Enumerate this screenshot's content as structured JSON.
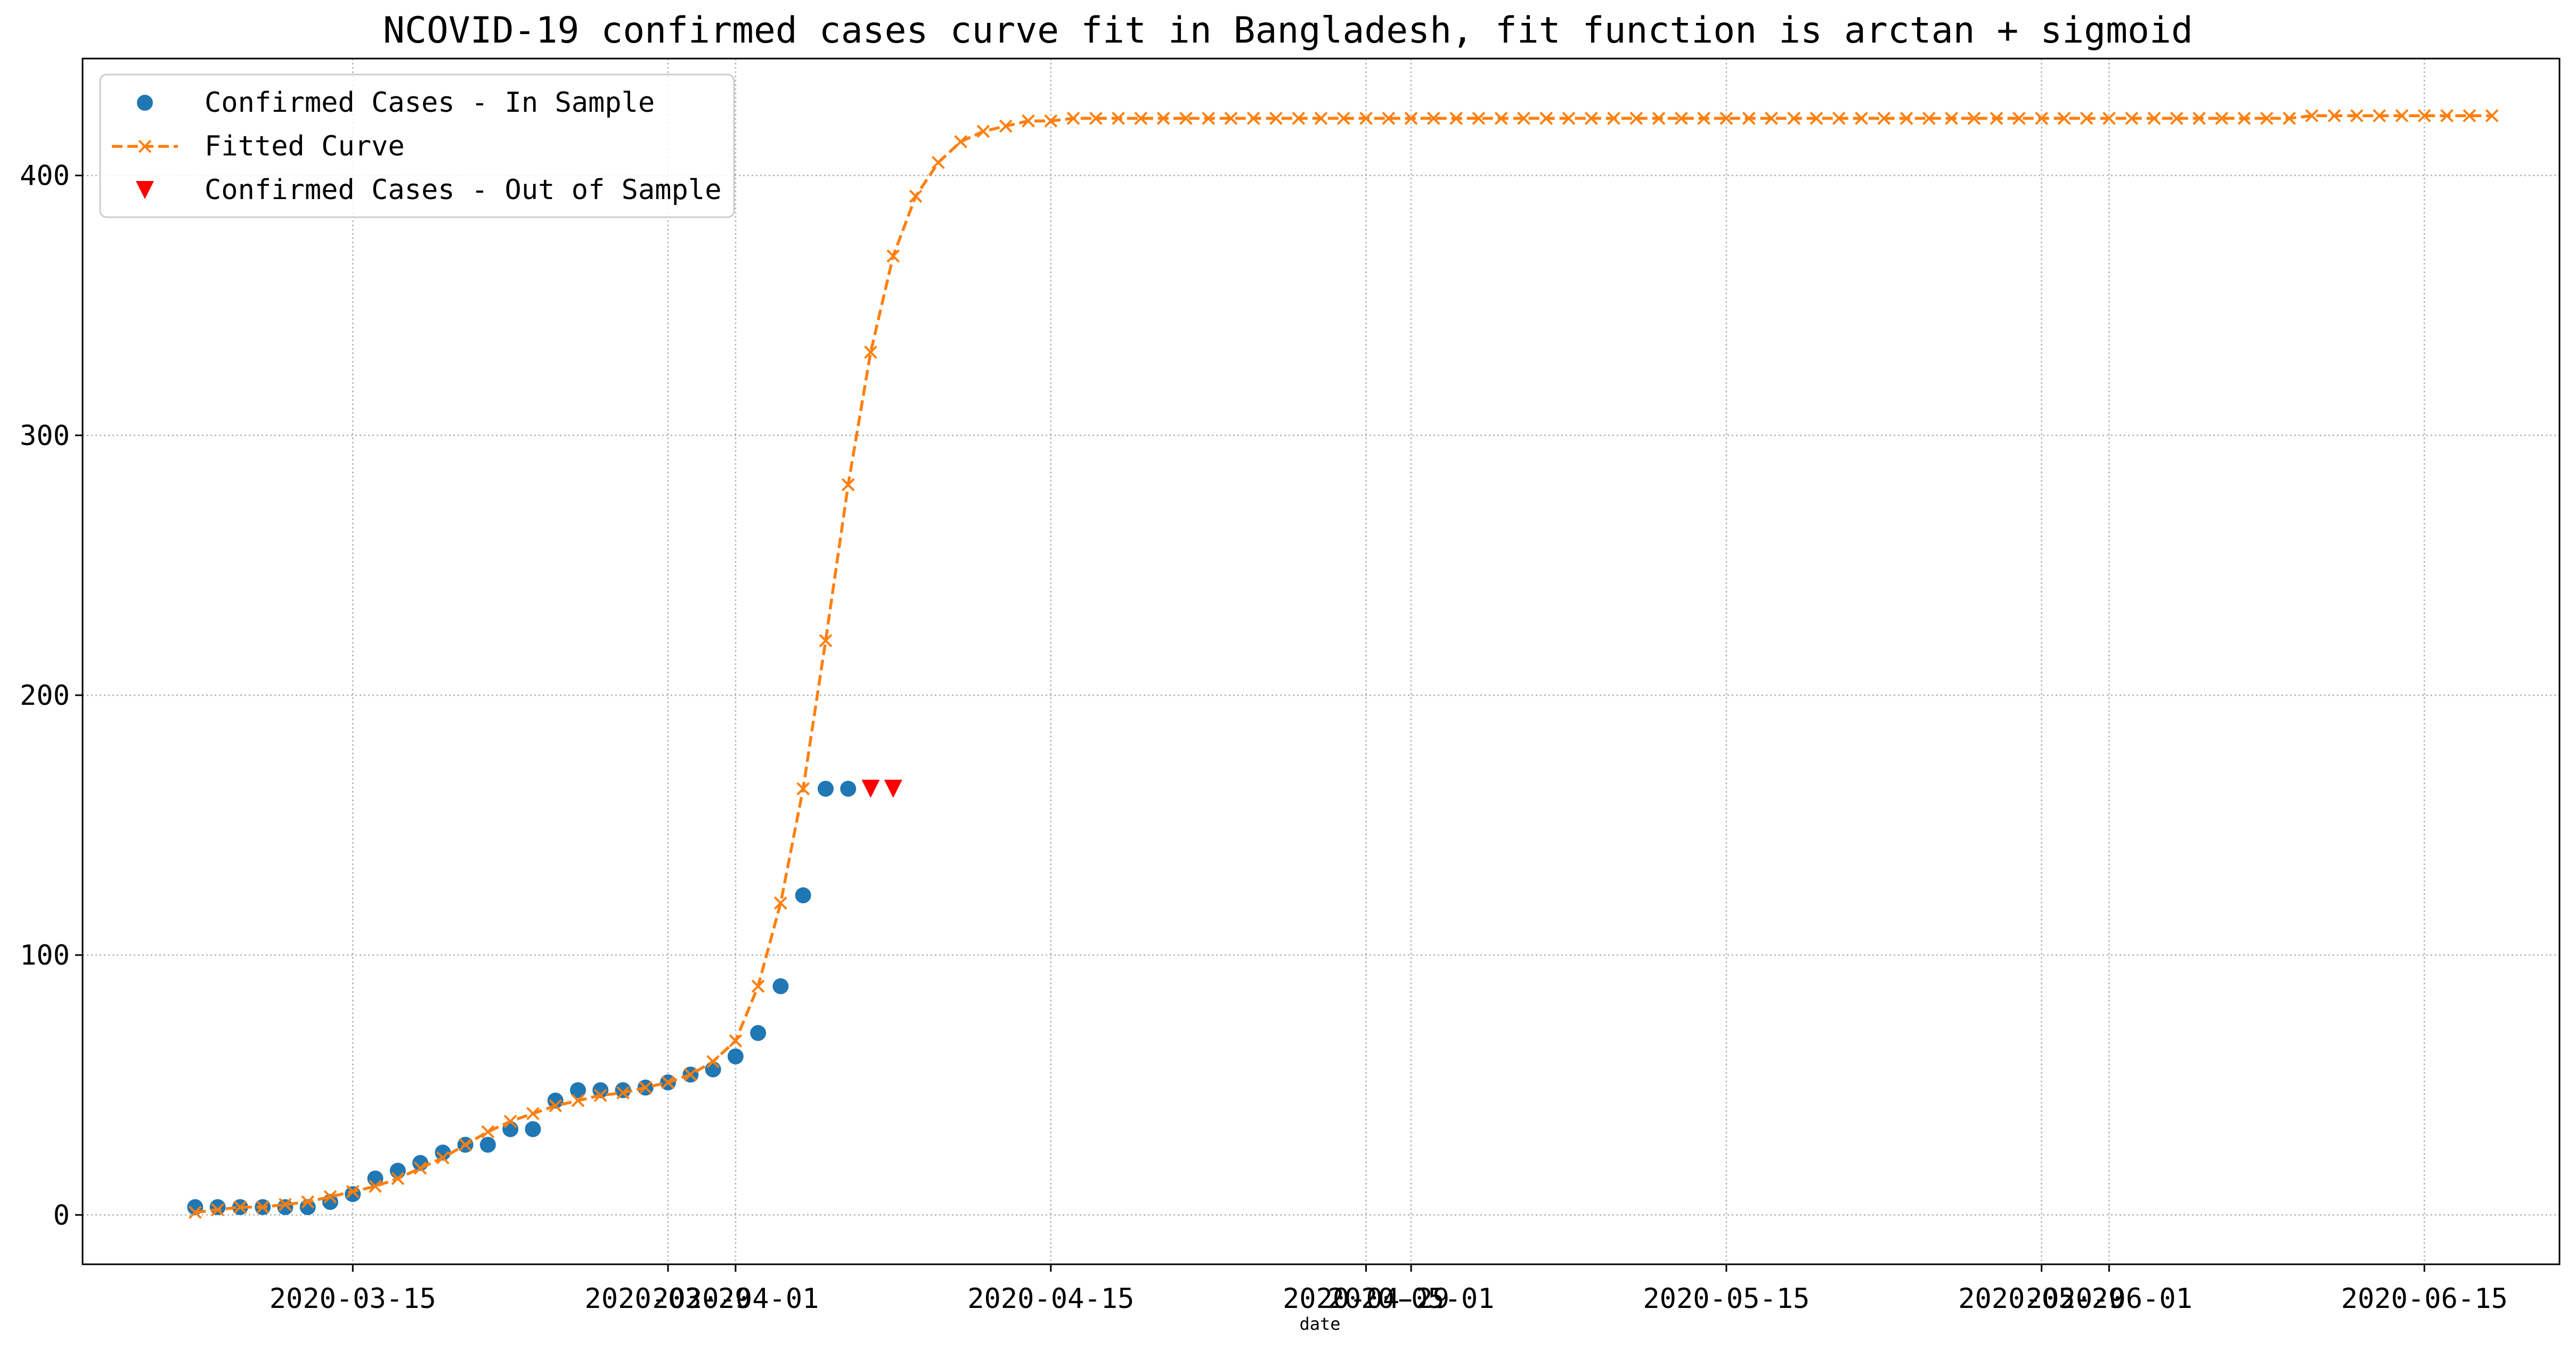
{
  "chart_data": {
    "type": "line",
    "title": "NCOVID-19 confirmed cases curve fit in Bangladesh, fit function is arctan + sigmoid",
    "xlabel": "date",
    "ylabel": "",
    "xlim": [
      "2020-03-03",
      "2020-06-21"
    ],
    "ylim": [
      -19,
      445
    ],
    "grid": true,
    "legend_position": "top-left",
    "x_ticks": [
      "2020-03-15",
      "2020-03-29",
      "2020-04-01",
      "2020-04-15",
      "2020-04-29",
      "2020-05-01",
      "2020-05-15",
      "2020-05-29",
      "2020-06-01",
      "2020-06-15"
    ],
    "y_ticks": [
      0,
      100,
      200,
      300,
      400
    ],
    "series": [
      {
        "name": "Confirmed Cases - In Sample",
        "marker": "circle",
        "color": "#1f77b4",
        "x": [
          "2020-03-08",
          "2020-03-09",
          "2020-03-10",
          "2020-03-11",
          "2020-03-12",
          "2020-03-13",
          "2020-03-14",
          "2020-03-15",
          "2020-03-16",
          "2020-03-17",
          "2020-03-18",
          "2020-03-19",
          "2020-03-20",
          "2020-03-21",
          "2020-03-22",
          "2020-03-23",
          "2020-03-24",
          "2020-03-25",
          "2020-03-26",
          "2020-03-27",
          "2020-03-28",
          "2020-03-29",
          "2020-03-30",
          "2020-03-31",
          "2020-04-01",
          "2020-04-02",
          "2020-04-03",
          "2020-04-04",
          "2020-04-05",
          "2020-04-06"
        ],
        "values": [
          3,
          3,
          3,
          3,
          3,
          3,
          5,
          8,
          14,
          17,
          20,
          24,
          27,
          27,
          33,
          33,
          44,
          48,
          48,
          48,
          49,
          51,
          54,
          56,
          61,
          70,
          88,
          123,
          164,
          164
        ]
      },
      {
        "name": "Fitted Curve",
        "marker": "x",
        "line": "dashed",
        "color": "#ff7f0e",
        "x_start": "2020-03-08",
        "values": [
          1,
          2,
          3,
          3,
          4,
          5,
          7,
          9,
          11,
          14,
          18,
          22,
          27,
          32,
          36,
          39,
          42,
          44,
          46,
          47,
          49,
          51,
          54,
          59,
          67,
          88,
          120,
          164,
          221,
          281,
          332,
          369,
          392,
          405,
          413,
          417,
          419,
          421,
          421,
          422,
          422,
          422,
          422,
          422,
          422,
          422,
          422,
          422,
          422,
          422,
          422,
          422,
          422,
          422,
          422,
          422,
          422,
          422,
          422,
          422,
          422,
          422,
          422,
          422,
          422,
          422,
          422,
          422,
          422,
          422,
          422,
          422,
          422,
          422,
          422,
          422,
          422,
          422,
          422,
          422,
          422,
          422,
          422,
          422,
          422,
          422,
          422,
          422,
          422,
          422,
          422,
          422,
          422,
          422,
          423,
          423,
          423,
          423,
          423,
          423,
          423,
          423,
          423
        ]
      },
      {
        "name": "Confirmed Cases - Out of Sample",
        "marker": "triangle-down",
        "color": "#ff0000",
        "x": [
          "2020-04-07",
          "2020-04-08"
        ],
        "values": [
          164,
          164
        ]
      }
    ]
  }
}
